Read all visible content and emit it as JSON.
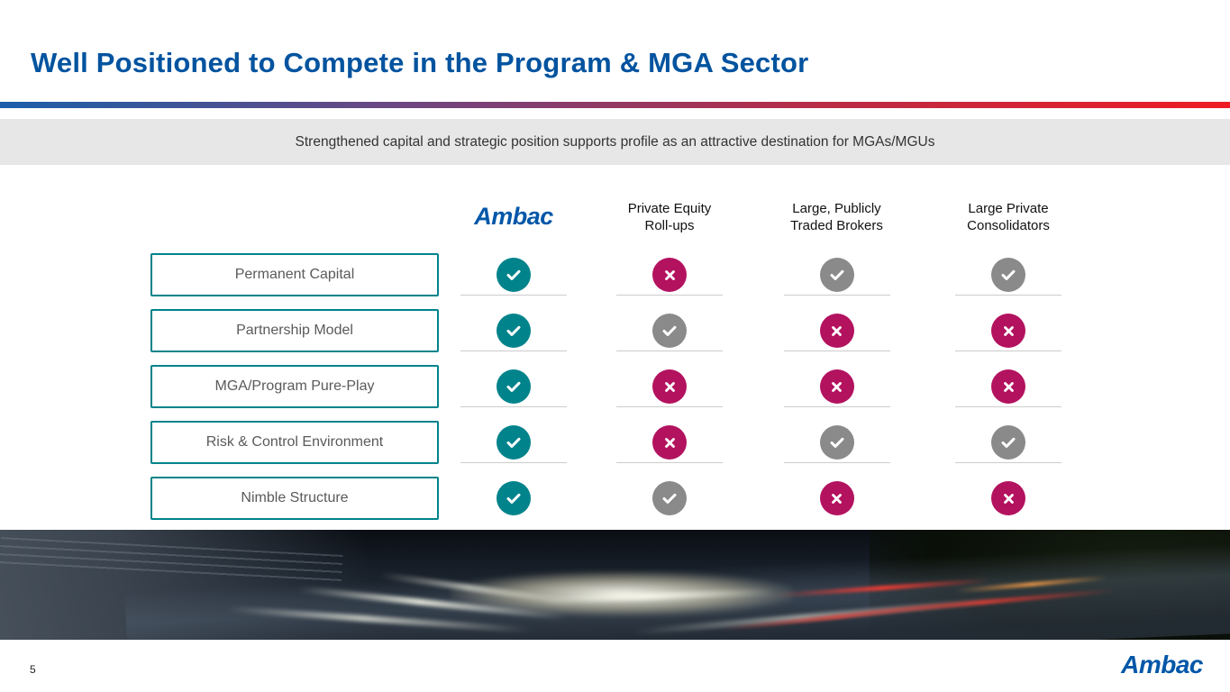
{
  "slide": {
    "title": "Well Positioned to Compete in the Program & MGA Sector",
    "subtitle": "Strengthened capital and strategic position supports profile as an attractive destination for MGAs/MGUs",
    "page_number": "5",
    "footer_logo_text": "Ambac"
  },
  "matrix": {
    "columns": [
      {
        "label": "Ambac",
        "logo": true
      },
      {
        "label": "Private Equity\nRoll-ups",
        "logo": false
      },
      {
        "label": "Large, Publicly\nTraded Brokers",
        "logo": false
      },
      {
        "label": "Large Private\nConsolidators",
        "logo": false
      }
    ],
    "rows": [
      {
        "label": "Permanent Capital",
        "cells": [
          "check:teal",
          "x:magenta",
          "check:gray",
          "check:gray"
        ]
      },
      {
        "label": "Partnership Model",
        "cells": [
          "check:teal",
          "check:gray",
          "x:magenta",
          "x:magenta"
        ]
      },
      {
        "label": "MGA/Program Pure-Play",
        "cells": [
          "check:teal",
          "x:magenta",
          "x:magenta",
          "x:magenta"
        ]
      },
      {
        "label": "Risk & Control Environment",
        "cells": [
          "check:teal",
          "x:magenta",
          "check:gray",
          "check:gray"
        ]
      },
      {
        "label": "Nimble Structure",
        "cells": [
          "check:teal",
          "check:gray",
          "x:magenta",
          "x:magenta"
        ]
      }
    ]
  },
  "colors": {
    "teal": "#00838B",
    "magenta": "#B3125F",
    "gray": "#8A8A8A",
    "title_blue": "#00539F",
    "logo_blue": "#0057A8",
    "banner_bg": "#E7E7E7",
    "gradient_bar_stops": [
      "#1B5FAA",
      "#6E4680",
      "#B92B46",
      "#EE1C25"
    ]
  },
  "hero_image": {
    "description": "Highway traffic at dusk with motion-blurred headlights and tail lights"
  }
}
